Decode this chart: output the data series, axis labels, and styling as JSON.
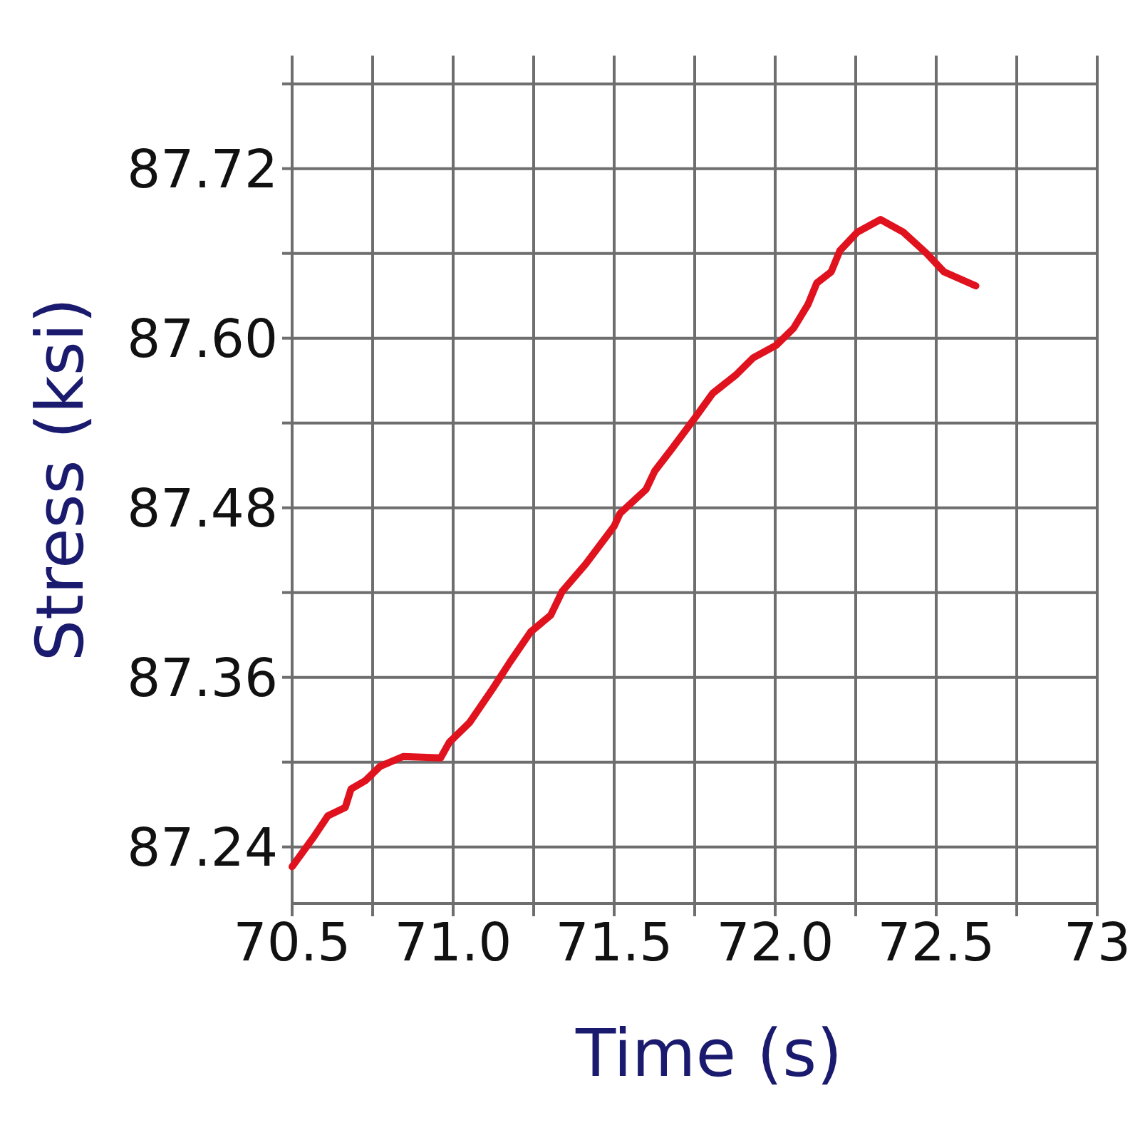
{
  "chart_data": {
    "type": "line",
    "xlabel": "Time (s)",
    "ylabel": "Stress (ksi)",
    "x": [
      70.5,
      70.567,
      70.611,
      70.665,
      70.683,
      70.728,
      70.773,
      70.845,
      70.961,
      70.988,
      71.051,
      71.123,
      71.177,
      71.24,
      71.303,
      71.339,
      71.411,
      71.5,
      71.518,
      71.599,
      71.626,
      71.68,
      71.752,
      71.806,
      71.878,
      71.931,
      72.003,
      72.057,
      72.102,
      72.129,
      72.174,
      72.201,
      72.255,
      72.327,
      72.398,
      72.47,
      72.524,
      72.623
    ],
    "values": [
      87.226,
      87.247,
      87.262,
      87.268,
      87.281,
      87.287,
      87.297,
      87.304,
      87.303,
      87.314,
      87.328,
      87.352,
      87.371,
      87.392,
      87.404,
      87.421,
      87.44,
      87.467,
      87.476,
      87.493,
      87.506,
      87.522,
      87.544,
      87.561,
      87.574,
      87.586,
      87.595,
      87.607,
      87.624,
      87.639,
      87.647,
      87.662,
      87.675,
      87.684,
      87.675,
      87.66,
      87.647,
      87.637
    ],
    "color": "#e0121e",
    "xlim": [
      70.5,
      73
    ],
    "ylim": [
      87.2,
      87.8
    ],
    "xticks": [
      70.5,
      {
        "value": 70.75,
        "label": null
      },
      {
        "value": 71,
        "label": "71.0"
      },
      {
        "value": 71.25,
        "label": null
      },
      71.5,
      {
        "value": 71.75,
        "label": null
      },
      {
        "value": 72,
        "label": "72.0"
      },
      {
        "value": 72.25,
        "label": null
      },
      72.5,
      {
        "value": 72.75,
        "label": null
      },
      73
    ],
    "yticks": [
      87.24,
      {
        "value": 87.3,
        "label": null
      },
      87.36,
      {
        "value": 87.42,
        "label": null
      },
      87.48,
      {
        "value": 87.54,
        "label": null
      },
      {
        "value": 87.6,
        "label": "87.60"
      },
      {
        "value": 87.66,
        "label": null
      },
      87.72,
      {
        "value": 87.78,
        "label": null
      }
    ],
    "grid": true
  }
}
